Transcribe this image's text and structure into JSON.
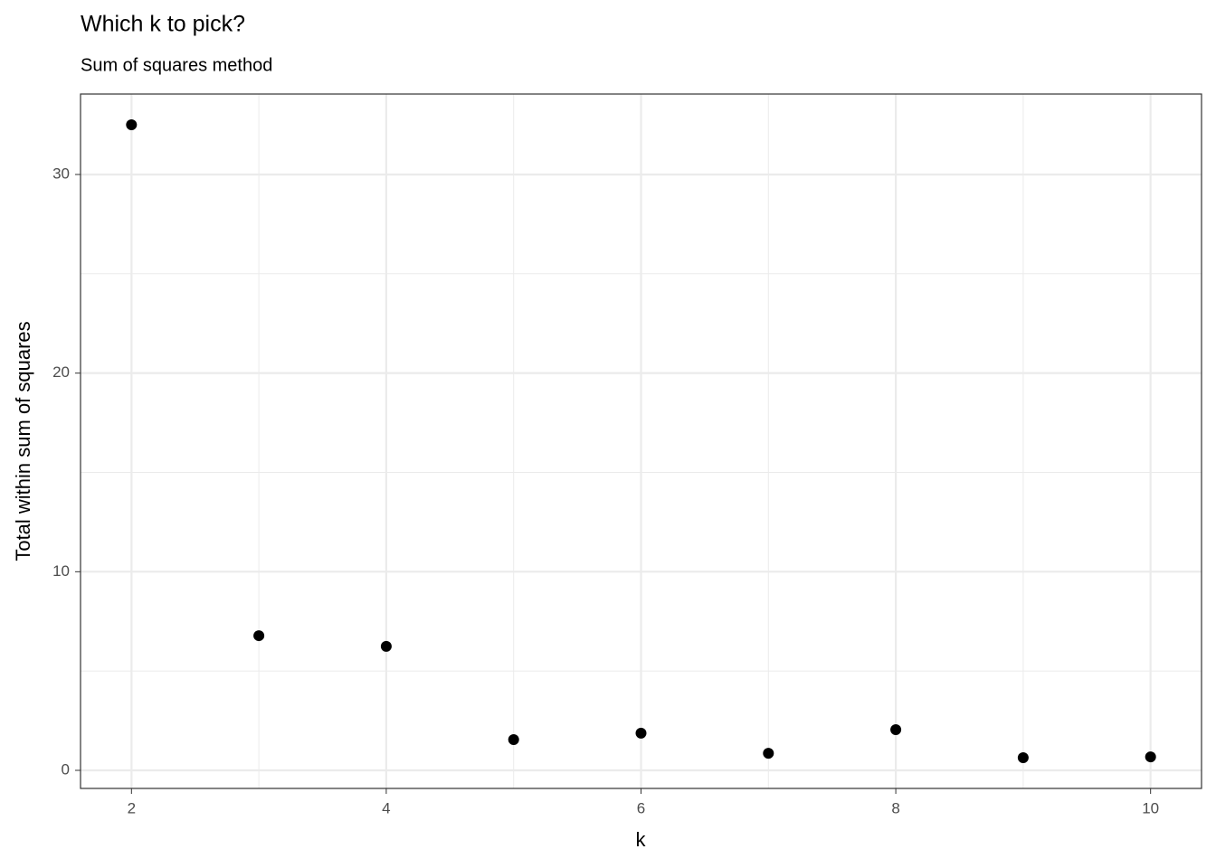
{
  "chart_data": {
    "type": "scatter",
    "title": "Which k to pick?",
    "subtitle": "Sum of squares method",
    "x_label": "k",
    "y_label": "Total within sum of squares",
    "x": [
      2,
      3,
      4,
      5,
      6,
      7,
      8,
      9,
      10
    ],
    "values": [
      32.5,
      6.78,
      6.24,
      1.55,
      1.87,
      0.86,
      2.05,
      0.64,
      0.68
    ],
    "color": "#000000",
    "xlim": [
      1.6,
      10.4
    ],
    "xticks": [
      2,
      4,
      6,
      8,
      10
    ],
    "xminor_ticks": [
      3,
      5,
      7,
      9
    ],
    "ylim": [
      -0.91,
      34.05
    ],
    "yticks": [
      0,
      10,
      20,
      30
    ],
    "yminor_ticks": [
      5,
      15,
      25
    ],
    "grid": true
  }
}
